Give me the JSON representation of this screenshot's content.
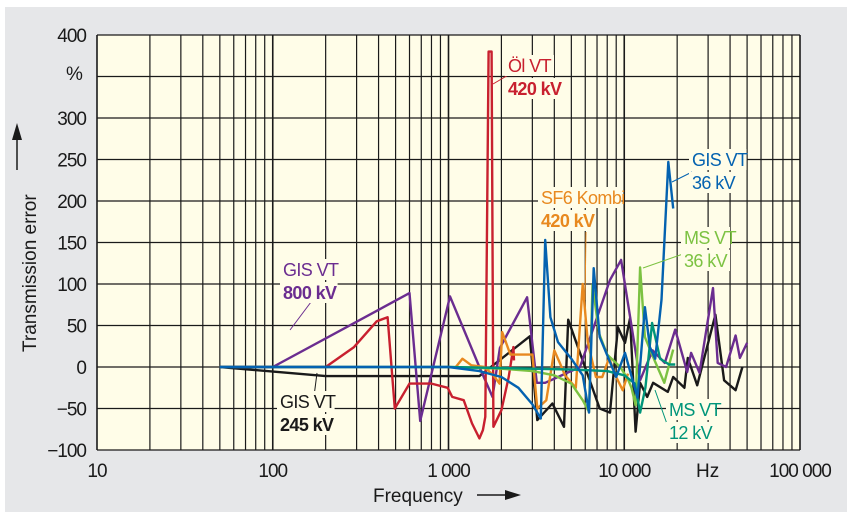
{
  "chart_data": {
    "type": "line",
    "xlabel": "Frequency",
    "ylabel": "Transmission error",
    "y_unit": "%",
    "x_unit": "Hz",
    "x_scale": "log",
    "xlim": [
      10,
      100000
    ],
    "ylim": [
      -100,
      400
    ],
    "grid": true,
    "x_ticks": [
      {
        "value": 10,
        "label": "10"
      },
      {
        "value": 100,
        "label": "100"
      },
      {
        "value": 1000,
        "label": "1 000"
      },
      {
        "value": 10000,
        "label": "10 000"
      },
      {
        "value": 100000,
        "label": "100 000"
      }
    ],
    "y_ticks": [
      {
        "value": 400,
        "label": "400"
      },
      {
        "value": 300,
        "label": "300"
      },
      {
        "value": 250,
        "label": "250"
      },
      {
        "value": 200,
        "label": "200"
      },
      {
        "value": 150,
        "label": "150"
      },
      {
        "value": 100,
        "label": "100"
      },
      {
        "value": 50,
        "label": "50"
      },
      {
        "value": 0,
        "label": "0"
      },
      {
        "value": -50,
        "label": "−50"
      },
      {
        "value": -100,
        "label": "−100"
      }
    ],
    "background_color": "#fffde8",
    "series": [
      {
        "label_lines": [
          "GIS VT",
          "245 kV"
        ],
        "color": "#1a1a1a",
        "points": [
          [
            50,
            0
          ],
          [
            200,
            -11
          ],
          [
            1500,
            -11
          ],
          [
            2900,
            37
          ],
          [
            3200,
            -64
          ],
          [
            3900,
            -44
          ],
          [
            4540,
            -72
          ],
          [
            4800,
            57
          ],
          [
            7250,
            -50
          ],
          [
            8300,
            -55
          ],
          [
            9200,
            48
          ],
          [
            10100,
            29
          ],
          [
            10800,
            59
          ],
          [
            11600,
            -78
          ],
          [
            12300,
            -19
          ],
          [
            13500,
            -36
          ],
          [
            14600,
            -19
          ],
          [
            17700,
            -30
          ],
          [
            19000,
            -12
          ],
          [
            22000,
            -25
          ],
          [
            23000,
            11
          ],
          [
            26000,
            -22
          ],
          [
            33000,
            63
          ],
          [
            37000,
            -16
          ],
          [
            43000,
            -28
          ],
          [
            47000,
            0
          ]
        ]
      },
      {
        "label_lines": [
          "GIS VT",
          "800 kV"
        ],
        "color": "#6b2d90",
        "points": [
          [
            50,
            0
          ],
          [
            100,
            0
          ],
          [
            600,
            89
          ],
          [
            690,
            -65
          ],
          [
            1020,
            85
          ],
          [
            1500,
            0
          ],
          [
            1780,
            -36
          ],
          [
            1960,
            23
          ],
          [
            2800,
            84
          ],
          [
            3180,
            -19
          ],
          [
            3550,
            -19
          ],
          [
            5600,
            0
          ],
          [
            8300,
            105
          ],
          [
            9600,
            129
          ],
          [
            12300,
            -16
          ],
          [
            14500,
            20
          ],
          [
            17000,
            5
          ],
          [
            19500,
            45
          ],
          [
            22800,
            -6
          ],
          [
            24000,
            17
          ],
          [
            26800,
            -7
          ],
          [
            32000,
            95
          ],
          [
            34000,
            5
          ],
          [
            38000,
            0
          ],
          [
            43000,
            38
          ],
          [
            45500,
            11
          ],
          [
            50000,
            29
          ]
        ]
      },
      {
        "label_lines": [
          "Öl VT",
          "420 kV"
        ],
        "color": "#c8202f",
        "points": [
          [
            50,
            0
          ],
          [
            200,
            0
          ],
          [
            290,
            24
          ],
          [
            390,
            55
          ],
          [
            450,
            60
          ],
          [
            495,
            -50
          ],
          [
            600,
            -20
          ],
          [
            800,
            -20
          ],
          [
            990,
            -25
          ],
          [
            1050,
            -36
          ],
          [
            1220,
            -40
          ],
          [
            1360,
            -68
          ],
          [
            1500,
            -86
          ],
          [
            1570,
            -76
          ],
          [
            1620,
            -60
          ],
          [
            1690,
            380
          ],
          [
            1760,
            380
          ],
          [
            1800,
            -72
          ],
          [
            2000,
            -52
          ],
          [
            2200,
            -12
          ],
          [
            2340,
            24
          ],
          [
            2360,
            8
          ]
        ]
      },
      {
        "label_lines": [
          "SF6 Kombi",
          "420 kV"
        ],
        "color": "#e8891f",
        "points": [
          [
            1100,
            0
          ],
          [
            1200,
            10
          ],
          [
            1350,
            2
          ],
          [
            1600,
            0
          ],
          [
            1800,
            -10
          ],
          [
            1950,
            -20
          ],
          [
            2020,
            42
          ],
          [
            2250,
            15
          ],
          [
            2800,
            15
          ],
          [
            3000,
            15
          ],
          [
            3200,
            -50
          ],
          [
            3600,
            -40
          ],
          [
            4000,
            20
          ],
          [
            4300,
            5
          ],
          [
            4600,
            -10
          ],
          [
            5300,
            -25
          ],
          [
            5800,
            100
          ],
          [
            6200,
            30
          ],
          [
            6900,
            -12
          ],
          [
            7500,
            -12
          ],
          [
            8200,
            11
          ],
          [
            9000,
            -12
          ],
          [
            9800,
            -28
          ],
          [
            10500,
            -8
          ]
        ]
      },
      {
        "label_lines": [
          "MS VT",
          "36 kV"
        ],
        "color": "#7cc242",
        "points": [
          [
            1000,
            0
          ],
          [
            2000,
            -2
          ],
          [
            3000,
            -5
          ],
          [
            4000,
            -10
          ],
          [
            5000,
            -20
          ],
          [
            5800,
            -40
          ],
          [
            6300,
            -54
          ],
          [
            6600,
            99
          ],
          [
            7200,
            40
          ],
          [
            8000,
            15
          ],
          [
            9500,
            0
          ],
          [
            10500,
            -15
          ],
          [
            11000,
            -25
          ],
          [
            11600,
            -46
          ],
          [
            12300,
            120
          ],
          [
            13100,
            36
          ],
          [
            14600,
            12
          ],
          [
            16900,
            -19
          ],
          [
            19000,
            21
          ]
        ]
      },
      {
        "label_lines": [
          "MS VT",
          "12 kV"
        ],
        "color": "#00957a",
        "points": [
          [
            50,
            0
          ],
          [
            1000,
            0
          ],
          [
            5000,
            -3
          ],
          [
            8000,
            -5
          ],
          [
            10000,
            -10
          ],
          [
            11500,
            -20
          ],
          [
            12300,
            -55
          ],
          [
            13200,
            -25
          ],
          [
            14400,
            53
          ],
          [
            16000,
            10
          ],
          [
            18000,
            3
          ],
          [
            19500,
            3
          ]
        ]
      },
      {
        "label_lines": [
          "GIS VT",
          "36 kV"
        ],
        "color": "#0462b0",
        "points": [
          [
            50,
            0
          ],
          [
            1000,
            0
          ],
          [
            1500,
            -5
          ],
          [
            2000,
            -12
          ],
          [
            2500,
            -25
          ],
          [
            3000,
            -45
          ],
          [
            3350,
            -62
          ],
          [
            3550,
            153
          ],
          [
            3800,
            60
          ],
          [
            4200,
            30
          ],
          [
            5000,
            10
          ],
          [
            5800,
            -10
          ],
          [
            6300,
            -55
          ],
          [
            6700,
            119
          ],
          [
            7250,
            36
          ],
          [
            9000,
            -12
          ],
          [
            10100,
            17
          ],
          [
            11900,
            -37
          ],
          [
            13100,
            72
          ],
          [
            14000,
            24
          ],
          [
            15000,
            10
          ],
          [
            16300,
            81
          ],
          [
            17800,
            247
          ],
          [
            19000,
            191
          ]
        ]
      }
    ]
  }
}
